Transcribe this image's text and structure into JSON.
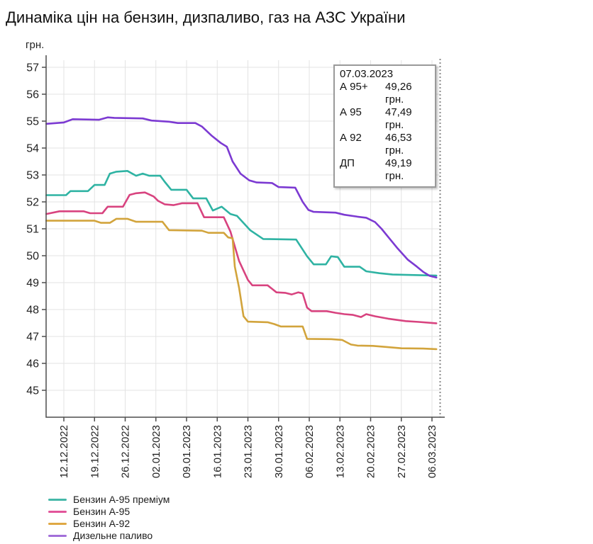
{
  "title": "Динаміка цін на бензин, дизпаливо, газ на АЗС України",
  "y_axis_unit": "грн.",
  "tooltip": {
    "date": "07.03.2023",
    "rows": [
      {
        "label": "А 95+",
        "value": "49,26 грн."
      },
      {
        "label": "А 95",
        "value": "47,49 грн."
      },
      {
        "label": "А 92",
        "value": "46,53 грн."
      },
      {
        "label": "ДП",
        "value": "49,19 грн."
      }
    ]
  },
  "legend": [
    {
      "label": "Бензин А-95 преміум",
      "color": "#45b8a9"
    },
    {
      "label": "Бензин А-95",
      "color": "#e2559a"
    },
    {
      "label": "Бензин А-92",
      "color": "#dfa844"
    },
    {
      "label": "Дизельне паливо",
      "color": "#a26fd9"
    }
  ],
  "colors": {
    "grid": "#e3e3e3",
    "axis": "#4d4d4d",
    "cursor_line": "#8a8a8a",
    "tick_text": "#222222"
  },
  "chart_data": {
    "type": "line",
    "title": "Динаміка цін на бензин, дизпаливо, газ на АЗС України",
    "ylabel": "грн.",
    "ylim": [
      44,
      57.4
    ],
    "y_ticks": [
      45,
      46,
      47,
      48,
      49,
      50,
      51,
      52,
      53,
      54,
      55,
      56,
      57
    ],
    "x_tick_labels": [
      "12.12.2022",
      "19.12.2022",
      "26.12.2022",
      "02.01.2023",
      "09.01.2023",
      "16.01.2023",
      "23.01.2023",
      "30.01.2023",
      "06.02.2023",
      "13.02.2023",
      "20.02.2023",
      "27.02.2023",
      "06.03.2023"
    ],
    "x_axis_note": "days measured from 12.12.2022 (tick 0); plot starts 4 days earlier; dotted cursor at 07.03.2023 = day 85",
    "cursor_date": "07.03.2023",
    "grid": true,
    "legend_position": "bottom-left",
    "series": [
      {
        "name": "Бензин А-95 преміум",
        "color": "#2fb3a3",
        "last_value": 49.26,
        "points": [
          [
            -4,
            52.25
          ],
          [
            0.5,
            52.25
          ],
          [
            1.5,
            52.4
          ],
          [
            5.5,
            52.4
          ],
          [
            7,
            52.63
          ],
          [
            9.3,
            52.63
          ],
          [
            10.5,
            53.05
          ],
          [
            12,
            53.12
          ],
          [
            14.5,
            53.15
          ],
          [
            16.5,
            52.97
          ],
          [
            18,
            53.05
          ],
          [
            19.5,
            52.97
          ],
          [
            22,
            52.97
          ],
          [
            23,
            52.75
          ],
          [
            24.5,
            52.45
          ],
          [
            28,
            52.45
          ],
          [
            29.5,
            52.13
          ],
          [
            32.5,
            52.13
          ],
          [
            34,
            51.68
          ],
          [
            36,
            51.82
          ],
          [
            38,
            51.55
          ],
          [
            39.5,
            51.48
          ],
          [
            42.5,
            50.95
          ],
          [
            45.5,
            50.62
          ],
          [
            53,
            50.6
          ],
          [
            55.5,
            49.98
          ],
          [
            57,
            49.68
          ],
          [
            59.8,
            49.68
          ],
          [
            61,
            49.98
          ],
          [
            62.5,
            49.95
          ],
          [
            64,
            49.59
          ],
          [
            67.5,
            49.59
          ],
          [
            69,
            49.42
          ],
          [
            72,
            49.35
          ],
          [
            75,
            49.3
          ],
          [
            85,
            49.26
          ]
        ]
      },
      {
        "name": "Бензин А-95",
        "color": "#d8437f",
        "last_value": 47.49,
        "points": [
          [
            -4,
            51.55
          ],
          [
            -1,
            51.65
          ],
          [
            4.5,
            51.65
          ],
          [
            6,
            51.58
          ],
          [
            8.8,
            51.58
          ],
          [
            10,
            51.82
          ],
          [
            13.5,
            51.82
          ],
          [
            15,
            52.26
          ],
          [
            16.5,
            52.32
          ],
          [
            18.5,
            52.35
          ],
          [
            20.5,
            52.2
          ],
          [
            21.5,
            52.04
          ],
          [
            23,
            51.91
          ],
          [
            25,
            51.88
          ],
          [
            27,
            51.95
          ],
          [
            30.5,
            51.95
          ],
          [
            32,
            51.43
          ],
          [
            36.5,
            51.43
          ],
          [
            38,
            50.9
          ],
          [
            40,
            49.8
          ],
          [
            42,
            49.1
          ],
          [
            43,
            48.9
          ],
          [
            46.5,
            48.9
          ],
          [
            48.5,
            48.64
          ],
          [
            50.5,
            48.62
          ],
          [
            52,
            48.56
          ],
          [
            53.5,
            48.64
          ],
          [
            54.5,
            48.6
          ],
          [
            55.5,
            48.07
          ],
          [
            56.5,
            47.94
          ],
          [
            60,
            47.94
          ],
          [
            62,
            47.88
          ],
          [
            64,
            47.83
          ],
          [
            66,
            47.8
          ],
          [
            67.8,
            47.72
          ],
          [
            69,
            47.83
          ],
          [
            71,
            47.75
          ],
          [
            74,
            47.66
          ],
          [
            78,
            47.57
          ],
          [
            81,
            47.54
          ],
          [
            85,
            47.49
          ]
        ]
      },
      {
        "name": "Бензин А-92",
        "color": "#d2a43c",
        "last_value": 46.53,
        "points": [
          [
            -4,
            51.3
          ],
          [
            7,
            51.3
          ],
          [
            8.5,
            51.22
          ],
          [
            10.5,
            51.22
          ],
          [
            12,
            51.37
          ],
          [
            14.5,
            51.37
          ],
          [
            16.5,
            51.26
          ],
          [
            22.5,
            51.26
          ],
          [
            24,
            50.95
          ],
          [
            31.5,
            50.93
          ],
          [
            33,
            50.85
          ],
          [
            36.5,
            50.85
          ],
          [
            37.5,
            50.68
          ],
          [
            38.5,
            50.65
          ],
          [
            39,
            49.6
          ],
          [
            40,
            48.8
          ],
          [
            41,
            47.75
          ],
          [
            42,
            47.55
          ],
          [
            46.5,
            47.53
          ],
          [
            48,
            47.46
          ],
          [
            49.5,
            47.37
          ],
          [
            54.5,
            47.37
          ],
          [
            55.5,
            46.91
          ],
          [
            61,
            46.9
          ],
          [
            63.5,
            46.87
          ],
          [
            65.5,
            46.7
          ],
          [
            67,
            46.66
          ],
          [
            70.5,
            46.65
          ],
          [
            73.5,
            46.61
          ],
          [
            77,
            46.56
          ],
          [
            82,
            46.55
          ],
          [
            85,
            46.53
          ]
        ]
      },
      {
        "name": "Дизельне паливо",
        "color": "#7c3ad2",
        "last_value": 49.19,
        "points": [
          [
            -4,
            54.9
          ],
          [
            0,
            54.95
          ],
          [
            2,
            55.07
          ],
          [
            8,
            55.05
          ],
          [
            10,
            55.14
          ],
          [
            11.5,
            55.12
          ],
          [
            18,
            55.1
          ],
          [
            20,
            55.02
          ],
          [
            24,
            54.98
          ],
          [
            26,
            54.93
          ],
          [
            30,
            54.93
          ],
          [
            31.5,
            54.8
          ],
          [
            33.8,
            54.45
          ],
          [
            35.8,
            54.19
          ],
          [
            37.2,
            54.05
          ],
          [
            38.5,
            53.5
          ],
          [
            40.3,
            53.05
          ],
          [
            42.3,
            52.8
          ],
          [
            44,
            52.72
          ],
          [
            47.5,
            52.7
          ],
          [
            49,
            52.55
          ],
          [
            52.8,
            52.53
          ],
          [
            54.5,
            52.0
          ],
          [
            55.8,
            51.7
          ],
          [
            57,
            51.63
          ],
          [
            62,
            51.6
          ],
          [
            64,
            51.52
          ],
          [
            67,
            51.45
          ],
          [
            69,
            51.41
          ],
          [
            71,
            51.25
          ],
          [
            72.5,
            51.0
          ],
          [
            74,
            50.7
          ],
          [
            76,
            50.3
          ],
          [
            78.5,
            49.85
          ],
          [
            80.5,
            49.6
          ],
          [
            82,
            49.4
          ],
          [
            83.5,
            49.25
          ],
          [
            85,
            49.19
          ]
        ]
      }
    ]
  }
}
